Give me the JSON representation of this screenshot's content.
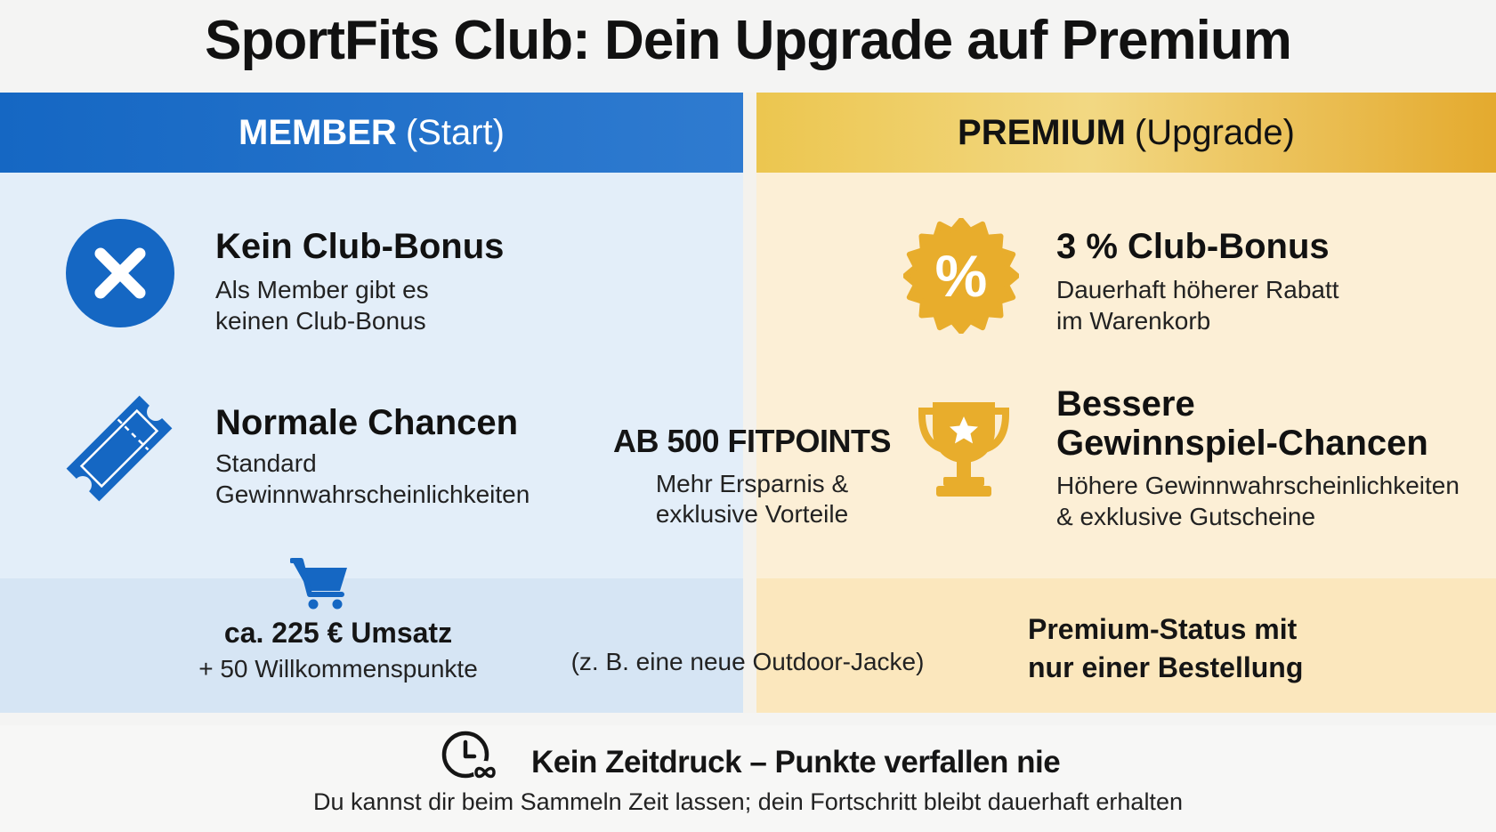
{
  "title": "SportFits Club: Dein Upgrade auf Premium",
  "member": {
    "header_strong": "MEMBER",
    "header_rest": "(Start)",
    "color": "#1567c3",
    "items": [
      {
        "icon": "x-circle-icon",
        "title": "Kein Club-Bonus",
        "desc_line1": "Als Member gibt es",
        "desc_line2": "keinen Club-Bonus"
      },
      {
        "icon": "ticket-icon",
        "title": "Normale Chancen",
        "desc_line1": "Standard",
        "desc_line2": "Gewinnwahrscheinlichkeiten"
      }
    ],
    "bottom": {
      "icon": "cart-icon",
      "line1": "ca. 225 € Umsatz",
      "line2": "+ 50 Willkommenspunkte"
    }
  },
  "premium": {
    "header_strong": "PREMIUM",
    "header_rest": "(Upgrade)",
    "color": "#e8ad2c",
    "items": [
      {
        "icon": "percent-badge-icon",
        "title": "3 % Club-Bonus",
        "desc_line1": "Dauerhaft höherer Rabatt",
        "desc_line2": "im Warenkorb"
      },
      {
        "icon": "trophy-icon",
        "title_line1": "Bessere",
        "title_line2": "Gewinnspiel-Chancen",
        "desc_line1": "Höhere Gewinnwahrscheinlichkeiten",
        "desc_line2": "& exklusive Gutscheine"
      }
    ],
    "bottom": {
      "line1": "Premium-Status mit",
      "line2": "nur einer Bestellung"
    }
  },
  "center": {
    "heading": "AB 500 FITPOINTS",
    "desc_line1": "Mehr Ersparnis &",
    "desc_line2": "exklusive Vorteile",
    "example": "(z. B. eine neue Outdoor-Jacke)"
  },
  "footer": {
    "icon": "clock-infinity-icon",
    "title": "Kein Zeitdruck – Punkte verfallen nie",
    "desc": "Du kannst dir beim Sammeln Zeit lassen; dein Fortschritt bleibt dauerhaft erhalten"
  }
}
